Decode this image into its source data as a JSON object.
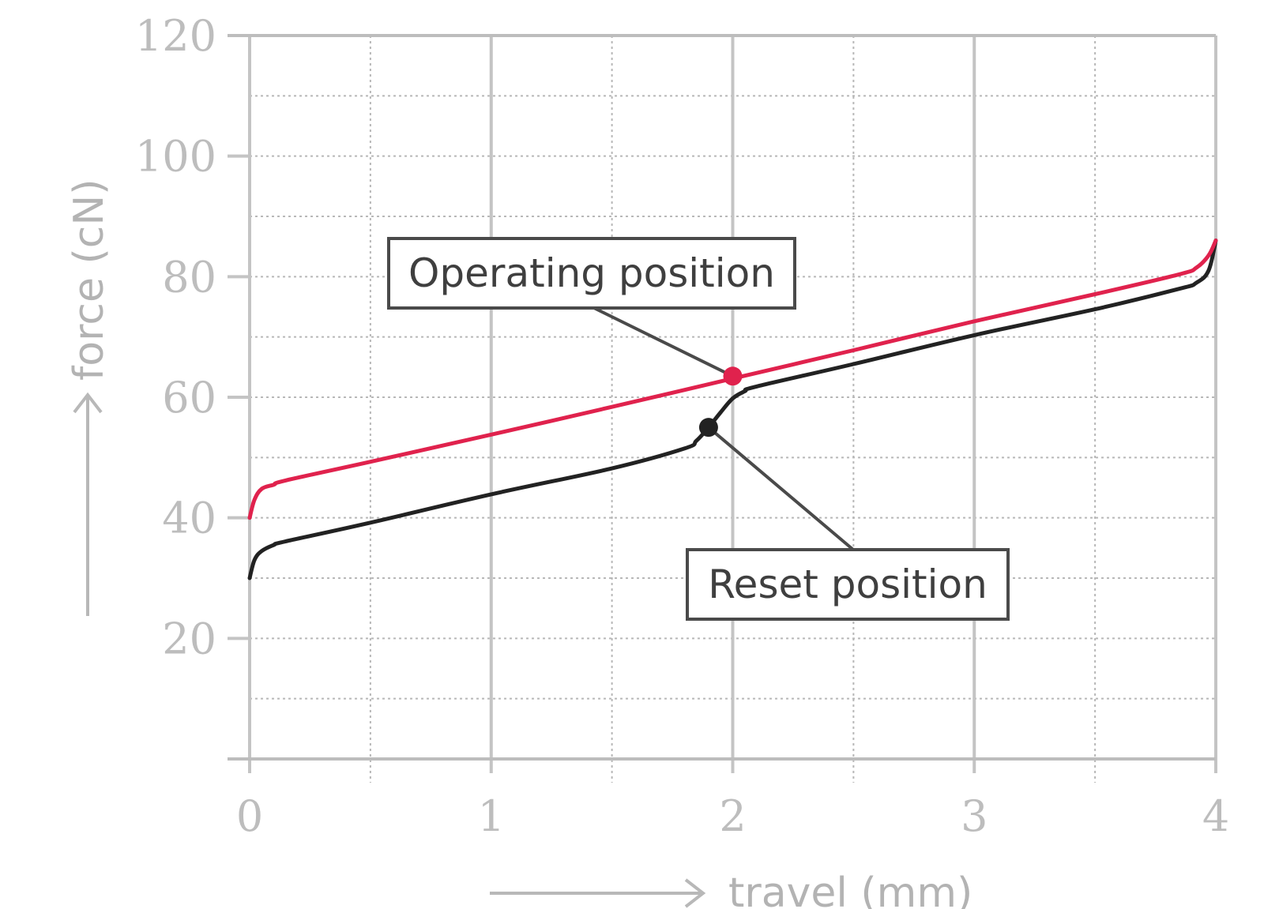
{
  "chart_data": {
    "type": "line",
    "xlabel": "travel (mm)",
    "ylabel": "force (cN)",
    "xlim": [
      0,
      4
    ],
    "ylim": [
      0,
      120
    ],
    "x_ticks": [
      "0",
      "1",
      "2",
      "3",
      "4"
    ],
    "y_ticks": [
      "20",
      "40",
      "60",
      "80",
      "100",
      "120"
    ],
    "grid": true,
    "series": [
      {
        "color": "#e0224d",
        "x": [
          0,
          0.02,
          0.05,
          0.1,
          0.15,
          0.5,
          1.0,
          1.5,
          2.0,
          2.5,
          3.0,
          3.5,
          3.85,
          3.92,
          3.97,
          4.0
        ],
        "y": [
          40,
          43,
          44.8,
          45.5,
          46.2,
          49.3,
          53.8,
          58.4,
          63.1,
          67.8,
          72.6,
          77.1,
          80.4,
          81.5,
          83.5,
          86
        ]
      },
      {
        "color": "#222222",
        "x": [
          0,
          0.02,
          0.05,
          0.1,
          0.15,
          0.5,
          1.0,
          1.5,
          1.8,
          1.85,
          1.9,
          1.95,
          2.0,
          2.05,
          2.1,
          2.5,
          3.0,
          3.5,
          3.85,
          3.92,
          3.97,
          4.0
        ],
        "y": [
          30,
          33,
          34.5,
          35.5,
          36.1,
          39.2,
          43.9,
          48.2,
          51.5,
          52.8,
          55,
          57.5,
          59.8,
          61,
          61.8,
          65.5,
          70.3,
          74.6,
          78,
          79,
          81,
          86
        ]
      }
    ],
    "annotations": [
      {
        "text": "Operating position",
        "x": 2.0,
        "y": 63.5,
        "color": "#e0224d"
      },
      {
        "text": "Reset position",
        "x": 1.9,
        "y": 55,
        "color": "#222222"
      }
    ]
  }
}
